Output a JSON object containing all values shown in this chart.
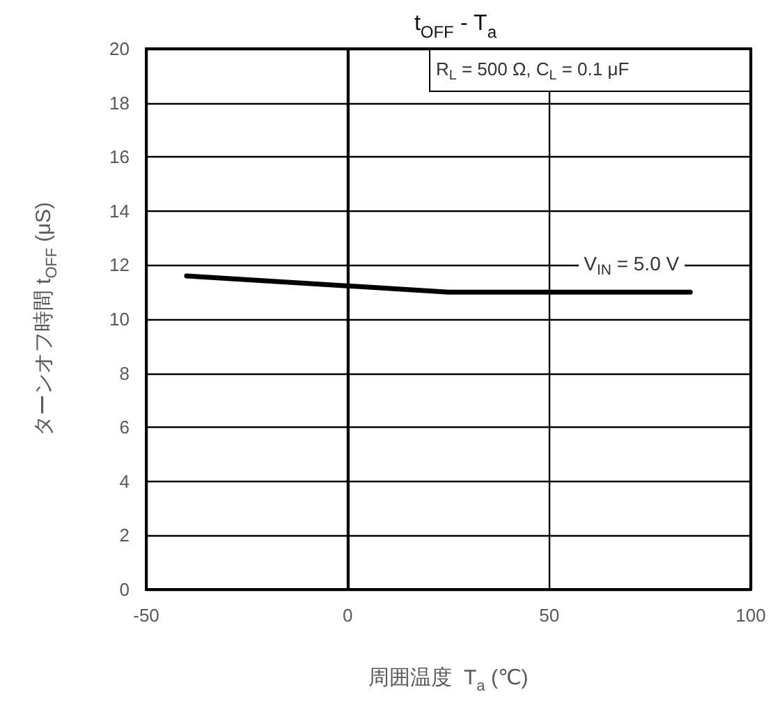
{
  "chart_data": {
    "type": "line",
    "title": "t$_{OFF}$ - T$_{a}$",
    "xlabel": "周囲温度  T$_{a}$ (℃)",
    "ylabel": "ターンオフ時間 t$_{OFF}$ (μS)",
    "annotations": [
      "R$_{L}$ = 500 Ω, C$_{L}$ = 0.1 μF"
    ],
    "x": [
      -40,
      25,
      85
    ],
    "series": [
      {
        "name": "V$_{IN}$ = 5.0 V",
        "color": "#000000",
        "values": [
          11.6,
          11.0,
          11.0
        ]
      }
    ],
    "xlim": [
      -50,
      100
    ],
    "xticks": [
      -50,
      0,
      50,
      100
    ],
    "ylim": [
      0,
      20
    ],
    "yticks": [
      0,
      2,
      4,
      6,
      8,
      10,
      12,
      14,
      16,
      18,
      20
    ],
    "grid": true,
    "marker": "none",
    "line_style": "solid"
  }
}
